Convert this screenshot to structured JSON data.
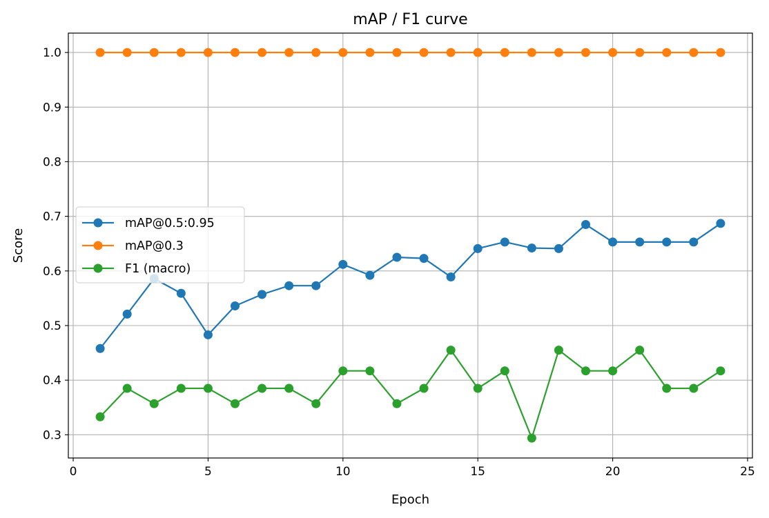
{
  "chart_data": {
    "type": "line",
    "title": "mAP / F1 curve",
    "xlabel": "Epoch",
    "ylabel": "Score",
    "xlim": [
      -0.18,
      25.18
    ],
    "ylim": [
      0.2575,
      1.0355
    ],
    "xticks": [
      0,
      5,
      10,
      15,
      20,
      25
    ],
    "yticks": [
      0.3,
      0.4,
      0.5,
      0.6,
      0.7,
      0.8,
      0.9,
      1.0
    ],
    "xtick_labels": [
      "0",
      "5",
      "10",
      "15",
      "20",
      "25"
    ],
    "ytick_labels": [
      "0.3",
      "0.4",
      "0.5",
      "0.6",
      "0.7",
      "0.8",
      "0.9",
      "1.0"
    ],
    "grid": true,
    "legend_position": "center-left",
    "x": [
      1,
      2,
      3,
      4,
      5,
      6,
      7,
      8,
      9,
      10,
      11,
      12,
      13,
      14,
      15,
      16,
      17,
      18,
      19,
      20,
      21,
      22,
      23,
      24
    ],
    "series": [
      {
        "name": "mAP@0.5:0.95",
        "color": "#1f77b4",
        "values": [
          0.458,
          0.521,
          0.586,
          0.559,
          0.483,
          0.536,
          0.557,
          0.573,
          0.573,
          0.612,
          0.592,
          0.625,
          0.623,
          0.589,
          0.641,
          0.653,
          0.642,
          0.641,
          0.685,
          0.653,
          0.653,
          0.653,
          0.653,
          0.687
        ]
      },
      {
        "name": "mAP@0.3",
        "color": "#ff7f0e",
        "values": [
          1.0,
          1.0,
          1.0,
          1.0,
          1.0,
          1.0,
          1.0,
          1.0,
          1.0,
          1.0,
          1.0,
          1.0,
          1.0,
          1.0,
          1.0,
          1.0,
          1.0,
          1.0,
          1.0,
          1.0,
          1.0,
          1.0,
          1.0,
          1.0
        ]
      },
      {
        "name": "F1 (macro)",
        "color": "#2ca02c",
        "values": [
          0.333,
          0.385,
          0.357,
          0.385,
          0.385,
          0.357,
          0.385,
          0.385,
          0.357,
          0.417,
          0.417,
          0.357,
          0.385,
          0.455,
          0.385,
          0.417,
          0.294,
          0.455,
          0.417,
          0.417,
          0.455,
          0.385,
          0.385,
          0.417
        ]
      }
    ]
  }
}
